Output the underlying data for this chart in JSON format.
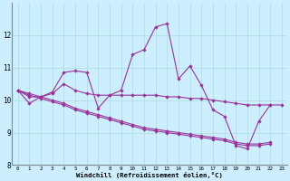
{
  "background_color": "#cceeff",
  "line_color": "#993399",
  "grid_color": "#aadddd",
  "xlabel": "Windchill (Refroidissement éolien,°C)",
  "xlim": [
    -0.5,
    23.5
  ],
  "ylim": [
    8,
    13
  ],
  "yticks": [
    8,
    9,
    10,
    11,
    12
  ],
  "xticks": [
    0,
    1,
    2,
    3,
    4,
    5,
    6,
    7,
    8,
    9,
    10,
    11,
    12,
    13,
    14,
    15,
    16,
    17,
    18,
    19,
    20,
    21,
    22,
    23
  ],
  "series_jagged": [
    10.3,
    9.9,
    10.1,
    10.25,
    10.85,
    10.9,
    10.85,
    9.75,
    10.15,
    10.3,
    11.4,
    11.55,
    12.25,
    12.35,
    10.65,
    11.05,
    10.45,
    9.7,
    9.5,
    8.6,
    8.5,
    9.35,
    9.85,
    null
  ],
  "series_flat": [
    10.3,
    10.1,
    10.1,
    10.2,
    10.5,
    10.3,
    10.2,
    10.15,
    10.15,
    10.15,
    10.15,
    10.15,
    10.15,
    10.1,
    10.1,
    10.05,
    10.05,
    10.0,
    9.95,
    9.9,
    9.85,
    9.85,
    9.85,
    9.85
  ],
  "series_trend1": [
    10.3,
    10.15,
    10.05,
    9.95,
    9.85,
    9.7,
    9.6,
    9.5,
    9.4,
    9.3,
    9.2,
    9.1,
    9.05,
    9.0,
    8.95,
    8.9,
    8.85,
    8.8,
    8.75,
    8.65,
    8.6,
    8.6,
    8.65,
    null
  ],
  "series_trend2": [
    10.3,
    10.2,
    10.1,
    10.0,
    9.9,
    9.75,
    9.65,
    9.55,
    9.45,
    9.35,
    9.25,
    9.15,
    9.1,
    9.05,
    9.0,
    8.95,
    8.9,
    8.85,
    8.8,
    8.7,
    8.65,
    8.65,
    8.7,
    null
  ]
}
